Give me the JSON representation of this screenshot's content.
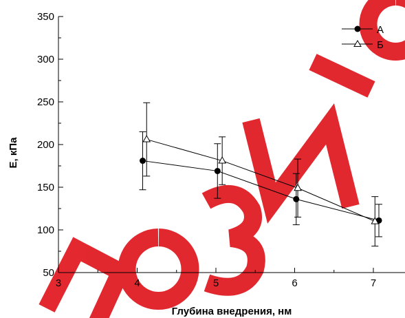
{
  "chart_data": {
    "type": "line",
    "title": "",
    "xlabel": "Глубина внедрения, нм",
    "ylabel": "E, кПа",
    "xlim": [
      3,
      7.5
    ],
    "ylim": [
      50,
      350
    ],
    "xticks": [
      3,
      4,
      5,
      6,
      7
    ],
    "yticks": [
      50,
      100,
      150,
      200,
      250,
      300,
      350
    ],
    "grid": false,
    "legend_position": "top-right",
    "series": [
      {
        "name": "А",
        "marker": "filled-circle",
        "x": [
          4.07,
          5.02,
          6.02,
          7.07
        ],
        "y": [
          181,
          169,
          136,
          111
        ],
        "err": [
          34,
          32,
          30,
          19
        ],
        "color": "#000000"
      },
      {
        "name": "Б",
        "marker": "open-triangle",
        "x": [
          4.12,
          5.08,
          6.04,
          7.02
        ],
        "y": [
          206,
          181,
          149,
          110
        ],
        "err": [
          43,
          28,
          34,
          29
        ],
        "color": "#000000"
      }
    ],
    "watermark_color": "#e11d24"
  }
}
